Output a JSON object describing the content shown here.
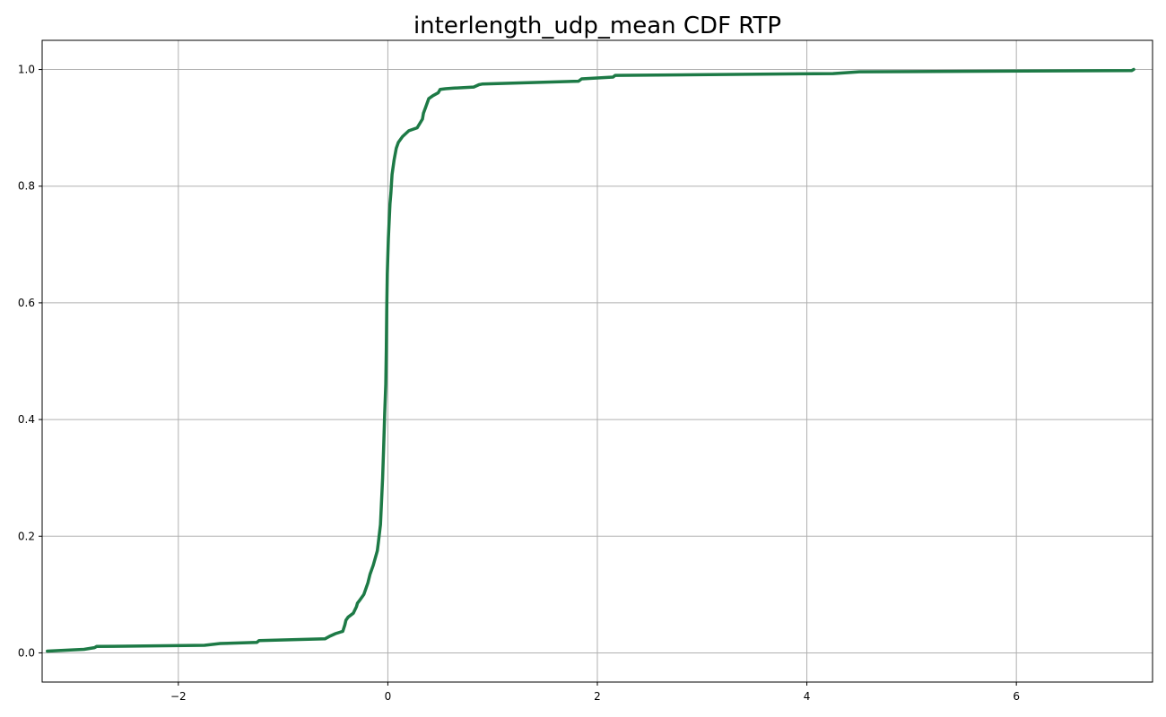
{
  "chart_data": {
    "type": "line",
    "title": "interlength_udp_mean CDF RTP",
    "xlabel": "",
    "ylabel": "",
    "xlim": [
      -3.3,
      7.3
    ],
    "ylim": [
      -0.05,
      1.05
    ],
    "grid": true,
    "x_ticks": [
      -2,
      0,
      2,
      4,
      6
    ],
    "x_tick_labels": [
      "−2",
      "0",
      "2",
      "4",
      "6"
    ],
    "y_ticks": [
      0.0,
      0.2,
      0.4,
      0.6,
      0.8,
      1.0
    ],
    "y_tick_labels": [
      "0.0",
      "0.2",
      "0.4",
      "0.6",
      "0.8",
      "1.0"
    ],
    "series": [
      {
        "color": "#1d7a46",
        "x": [
          -3.25,
          -2.9,
          -2.8,
          -2.78,
          -1.75,
          -1.6,
          -1.25,
          -1.23,
          -0.6,
          -0.55,
          -0.5,
          -0.43,
          -0.41,
          -0.4,
          -0.38,
          -0.33,
          -0.3,
          -0.29,
          -0.27,
          -0.23,
          -0.19,
          -0.17,
          -0.14,
          -0.1,
          -0.09,
          -0.07,
          -0.06,
          -0.05,
          -0.04,
          -0.03,
          -0.02,
          -0.015,
          -0.01,
          -0.005,
          0.0,
          0.005,
          0.01,
          0.02,
          0.03,
          0.04,
          0.06,
          0.08,
          0.1,
          0.14,
          0.2,
          0.28,
          0.33,
          0.34,
          0.36,
          0.39,
          0.43,
          0.48,
          0.5,
          0.55,
          0.62,
          0.82,
          0.87,
          0.9,
          1.82,
          1.85,
          2.15,
          2.17,
          4.25,
          4.5,
          7.1,
          7.12
        ],
        "y": [
          0.003,
          0.006,
          0.009,
          0.011,
          0.013,
          0.016,
          0.018,
          0.021,
          0.024,
          0.029,
          0.033,
          0.037,
          0.048,
          0.056,
          0.061,
          0.068,
          0.079,
          0.085,
          0.09,
          0.1,
          0.12,
          0.135,
          0.15,
          0.175,
          0.19,
          0.22,
          0.26,
          0.3,
          0.35,
          0.41,
          0.46,
          0.52,
          0.59,
          0.65,
          0.68,
          0.71,
          0.73,
          0.77,
          0.79,
          0.82,
          0.845,
          0.865,
          0.875,
          0.885,
          0.895,
          0.9,
          0.915,
          0.925,
          0.935,
          0.95,
          0.955,
          0.96,
          0.966,
          0.967,
          0.968,
          0.97,
          0.974,
          0.975,
          0.98,
          0.984,
          0.987,
          0.99,
          0.993,
          0.996,
          0.998,
          1.0
        ]
      }
    ]
  }
}
